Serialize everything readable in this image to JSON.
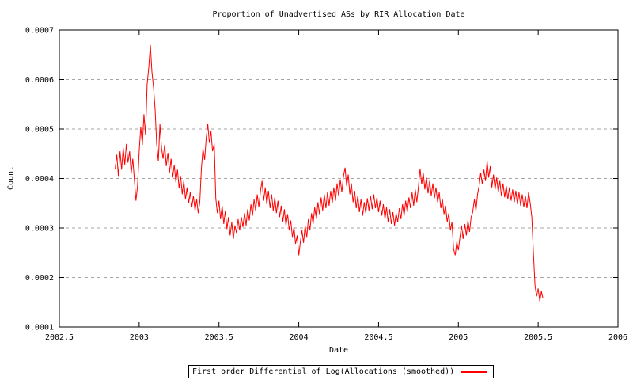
{
  "colors": {
    "line": "#ff0000",
    "grid": "#a6a6a6",
    "axis": "#000000",
    "text": "#000000",
    "background": "#ffffff"
  },
  "chart_data": {
    "type": "line",
    "title": "Proportion of Unadvertised ASs by RIR Allocation Date",
    "xlabel": "Date",
    "ylabel": "Count",
    "xlim": [
      2002.5,
      2006
    ],
    "ylim": [
      0.0001,
      0.0007
    ],
    "grid": "horizontal-dashed",
    "legend_position": "below-plot-centered",
    "x_ticks": [
      {
        "value": 2002.5,
        "label": "2002.5"
      },
      {
        "value": 2003,
        "label": "2003"
      },
      {
        "value": 2003.5,
        "label": "2003.5"
      },
      {
        "value": 2004,
        "label": "2004"
      },
      {
        "value": 2004.5,
        "label": "2004.5"
      },
      {
        "value": 2005,
        "label": "2005"
      },
      {
        "value": 2005.5,
        "label": "2005.5"
      },
      {
        "value": 2006,
        "label": "2006"
      }
    ],
    "y_ticks": [
      {
        "value": 0.0001,
        "label": "0.0001"
      },
      {
        "value": 0.0002,
        "label": "0.0002"
      },
      {
        "value": 0.0003,
        "label": "0.0003"
      },
      {
        "value": 0.0004,
        "label": "0.0004"
      },
      {
        "value": 0.0005,
        "label": "0.0005"
      },
      {
        "value": 0.0006,
        "label": "0.0006"
      },
      {
        "value": 0.0007,
        "label": "0.0007"
      }
    ],
    "series": [
      {
        "name": "First order Differential of Log(Allocations (smoothed))",
        "color": "#ff0000",
        "x_start": 2002.85,
        "x_step": 0.01,
        "value_scale": 1e-06,
        "values": [
          420,
          448,
          405,
          455,
          418,
          462,
          428,
          470,
          432,
          455,
          410,
          440,
          398,
          355,
          385,
          455,
          505,
          468,
          530,
          488,
          590,
          625,
          670,
          615,
          585,
          540,
          470,
          435,
          510,
          462,
          440,
          468,
          425,
          452,
          412,
          440,
          402,
          428,
          392,
          418,
          380,
          405,
          368,
          395,
          358,
          382,
          350,
          372,
          342,
          365,
          335,
          358,
          330,
          352,
          420,
          460,
          438,
          482,
          510,
          472,
          495,
          455,
          470,
          360,
          330,
          355,
          318,
          345,
          308,
          335,
          298,
          322,
          285,
          312,
          278,
          305,
          290,
          318,
          295,
          322,
          302,
          330,
          305,
          338,
          315,
          348,
          325,
          358,
          335,
          368,
          342,
          375,
          395,
          355,
          382,
          348,
          375,
          340,
          368,
          335,
          362,
          330,
          355,
          322,
          345,
          312,
          338,
          305,
          328,
          295,
          315,
          282,
          302,
          268,
          285,
          245,
          272,
          295,
          270,
          305,
          282,
          318,
          295,
          330,
          308,
          342,
          318,
          352,
          328,
          362,
          335,
          368,
          340,
          372,
          345,
          375,
          350,
          382,
          355,
          390,
          365,
          398,
          372,
          405,
          422,
          385,
          408,
          368,
          390,
          352,
          375,
          340,
          365,
          332,
          358,
          325,
          352,
          330,
          360,
          335,
          365,
          338,
          368,
          340,
          362,
          332,
          355,
          325,
          348,
          318,
          342,
          312,
          338,
          308,
          332,
          305,
          330,
          312,
          340,
          318,
          348,
          325,
          355,
          332,
          362,
          340,
          372,
          345,
          378,
          352,
          385,
          420,
          388,
          412,
          378,
          402,
          370,
          395,
          365,
          390,
          360,
          382,
          352,
          372,
          340,
          358,
          328,
          345,
          312,
          330,
          295,
          312,
          258,
          245,
          272,
          255,
          282,
          305,
          278,
          308,
          285,
          315,
          292,
          322,
          332,
          358,
          335,
          368,
          385,
          412,
          388,
          418,
          395,
          435,
          402,
          425,
          382,
          408,
          378,
          402,
          372,
          395,
          365,
          390,
          362,
          385,
          358,
          382,
          355,
          378,
          352,
          375,
          348,
          372,
          345,
          368,
          342,
          365,
          340,
          372,
          350,
          322,
          250,
          185,
          162,
          178,
          152,
          172,
          158
        ]
      }
    ]
  }
}
